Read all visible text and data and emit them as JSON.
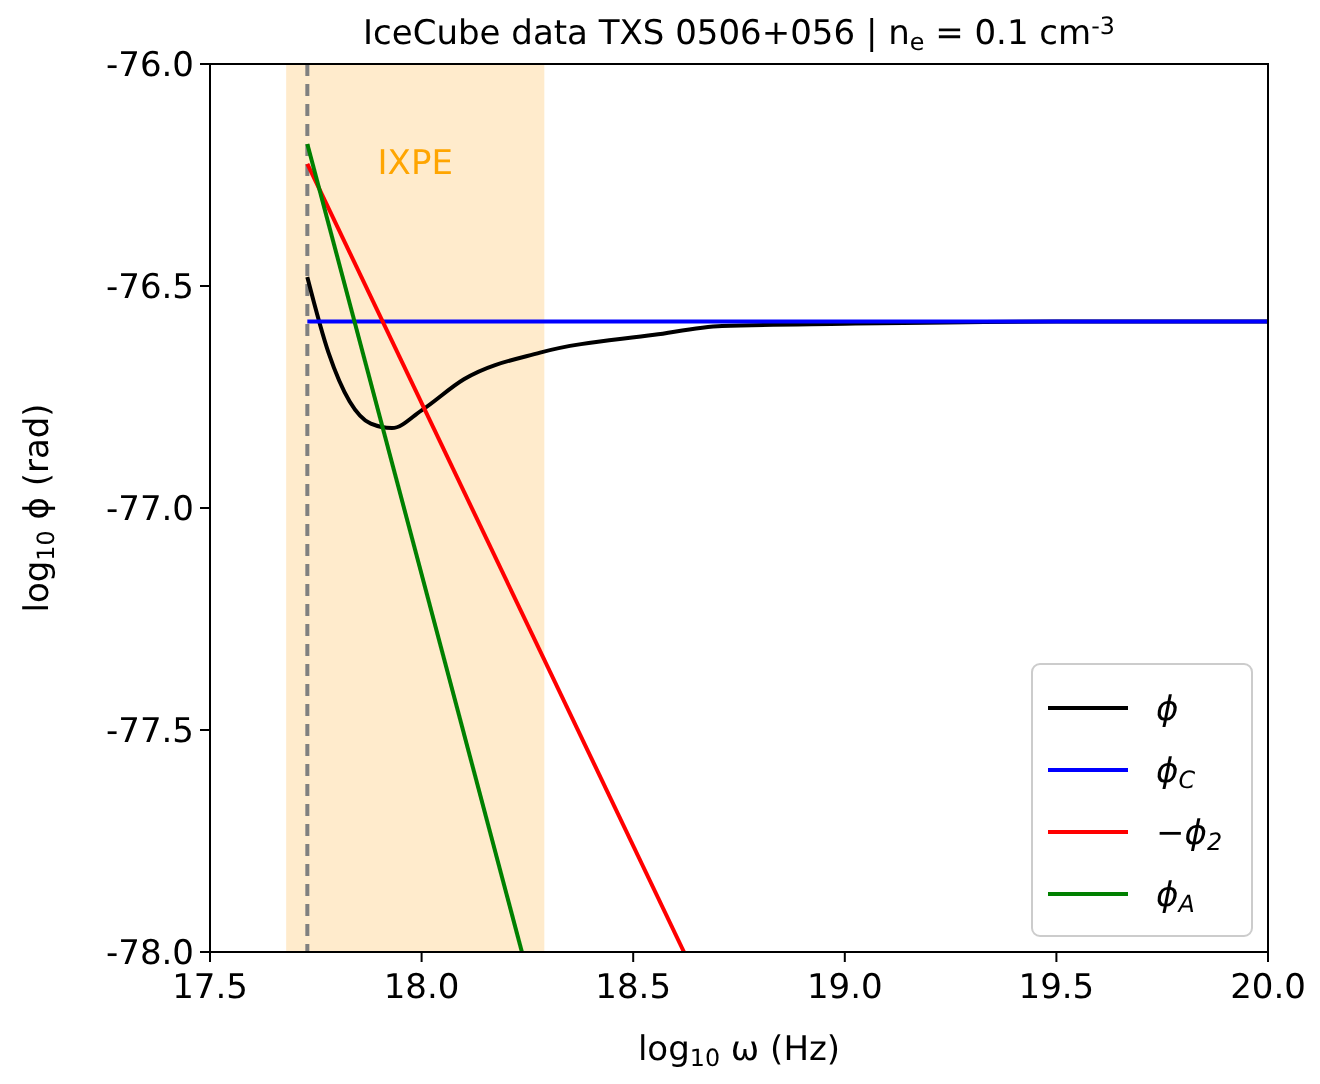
{
  "chart_data": {
    "type": "line",
    "title": "IceCube data TXS 0506+056  |  n$_{e}$ = 0.1 cm$^{-3}$",
    "xlabel": "log$_{10}$ ω (Hz)",
    "ylabel": "log$_{10}$ ϕ (rad)",
    "xlim": [
      17.5,
      20.0
    ],
    "ylim": [
      -78.0,
      -76.0
    ],
    "xticks": [
      {
        "value": 17.5,
        "label": "17.5"
      },
      {
        "value": 18,
        "label": "18.0"
      },
      {
        "value": 18.5,
        "label": "18.5"
      },
      {
        "value": 19,
        "label": "19.0"
      },
      {
        "value": 19.5,
        "label": "19.5"
      },
      {
        "value": 20,
        "label": "20.0"
      }
    ],
    "yticks": [
      {
        "value": -78,
        "label": "-78.0"
      },
      {
        "value": -77.5,
        "label": "-77.5"
      },
      {
        "value": -77,
        "label": "-77.0"
      },
      {
        "value": -76.5,
        "label": "-76.5"
      },
      {
        "value": -76,
        "label": "-76.0"
      }
    ],
    "grid": false,
    "legend": "bottom right",
    "line_style": "solid",
    "bands": [
      {
        "axis": "x",
        "from": 17.68,
        "to": 18.29,
        "label": "IXPE",
        "color": "#ffebcc"
      }
    ],
    "ref_lines": [
      {
        "axis": "x",
        "value": 17.73,
        "color": "#808080",
        "line_style": "dashed"
      }
    ],
    "series": [
      {
        "name": "ϕ",
        "color": "#000000",
        "x": [
          17.73,
          17.78,
          17.83,
          17.88,
          17.93,
          18.0,
          18.1,
          18.28,
          18.55,
          18.71,
          19.0,
          19.5,
          20.0
        ],
        "values": [
          -76.48,
          -76.65,
          -76.76,
          -76.81,
          -76.82,
          -76.78,
          -76.71,
          -76.65,
          -76.61,
          -76.59,
          -76.585,
          -76.58,
          -76.58
        ]
      },
      {
        "name": "ϕ$_{C}$",
        "color": "#0000ff",
        "x": [
          17.73,
          20.0
        ],
        "values": [
          -76.58,
          -76.58
        ]
      },
      {
        "name": "−ϕ$_{2}$",
        "color": "#ff0000",
        "x": [
          17.73,
          18.62
        ],
        "values": [
          -76.225,
          -78.0
        ]
      },
      {
        "name": "ϕ$_{A}$",
        "color": "#008000",
        "x": [
          17.73,
          18.237
        ],
        "values": [
          -76.18,
          -78.0
        ]
      }
    ]
  }
}
